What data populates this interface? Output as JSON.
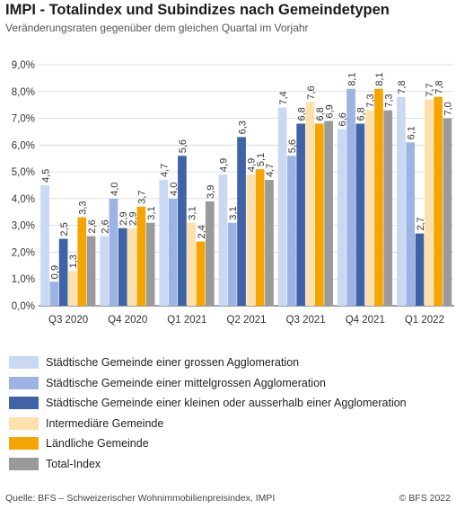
{
  "header": {
    "title": "IMPI - Totalindex und Subindizes nach Gemeindetypen",
    "subtitle": "Veränderungsraten gegenüber dem gleichen Quartal im Vorjahr"
  },
  "chart_data": {
    "type": "bar",
    "categories": [
      "Q3 2020",
      "Q4 2020",
      "Q1 2021",
      "Q2 2021",
      "Q3 2021",
      "Q4 2021",
      "Q1 2022"
    ],
    "ylim": [
      0,
      9
    ],
    "yticks": [
      "0,0%",
      "1,0%",
      "2,0%",
      "3,0%",
      "4,0%",
      "5,0%",
      "6,0%",
      "7,0%",
      "8,0%",
      "9,0%"
    ],
    "grid": true,
    "legend_position": "bottom",
    "series": [
      {
        "name": "Städtische Gemeinde einer grossen Agglomeration",
        "color": "#c9d9f3",
        "values": [
          4.5,
          2.6,
          4.7,
          4.9,
          7.4,
          6.6,
          7.8
        ],
        "labels": [
          "4,5",
          "2,6",
          "4,7",
          "4,9",
          "7,4",
          "6,6",
          "7,8"
        ]
      },
      {
        "name": "Städtische Gemeinde einer mittelgrossen Agglomeration",
        "color": "#9db3e3",
        "values": [
          0.9,
          4.0,
          4.0,
          3.1,
          5.6,
          8.1,
          6.1
        ],
        "labels": [
          "0,9",
          "4,0",
          "4,0",
          "3,1",
          "5,6",
          "8,1",
          "6,1"
        ]
      },
      {
        "name": "Städtische Gemeinde einer kleinen oder ausserhalb einer Agglomeration",
        "color": "#3f63a6",
        "values": [
          2.5,
          2.9,
          5.6,
          6.3,
          6.8,
          6.8,
          2.7
        ],
        "labels": [
          "2,5",
          "2,9",
          "5,6",
          "6,3",
          "6,8",
          "6,8",
          "2,7"
        ]
      },
      {
        "name": "Intermediäre Gemeinde",
        "color": "#fde0ac",
        "values": [
          1.3,
          2.9,
          3.1,
          4.9,
          7.6,
          7.3,
          7.7
        ],
        "labels": [
          "1,3",
          "2,9",
          "3,1",
          "4,9",
          "7,6",
          "7,3",
          "7,7"
        ]
      },
      {
        "name": "Ländliche Gemeinde",
        "color": "#f5a500",
        "values": [
          3.3,
          3.7,
          2.4,
          5.1,
          6.8,
          8.1,
          7.8
        ],
        "labels": [
          "3,3",
          "3,7",
          "2,4",
          "5,1",
          "6,8",
          "8,1",
          "7,8"
        ]
      },
      {
        "name": "Total-Index",
        "color": "#9a9a9a",
        "values": [
          2.6,
          3.1,
          3.9,
          4.7,
          6.9,
          7.3,
          7.0
        ],
        "labels": [
          "2,6",
          "3,1",
          "3,9",
          "4,7",
          "6,9",
          "7,3",
          "7,0"
        ]
      }
    ]
  },
  "footer": {
    "source": "Quelle: BFS – Schweizerischer Wohnimmobilienpreisindex, IMPI",
    "copyright": "© BFS 2022"
  }
}
